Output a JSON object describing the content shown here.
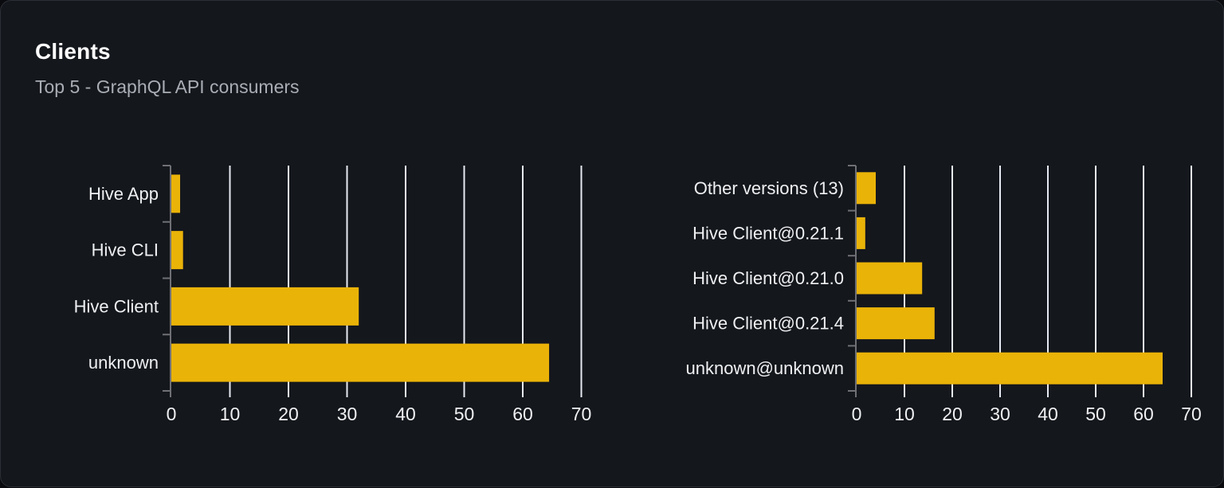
{
  "card": {
    "title": "Clients",
    "subtitle": "Top 5 - GraphQL API consumers"
  },
  "colors": {
    "bar": "#EAB308",
    "card_background": "#14171C",
    "card_border": "#2B2F36",
    "page_background": "#0A0B0E",
    "axis": "#6F7076",
    "grid": "#E7EAF2",
    "label": "#EFF0F2",
    "title": "#FFFFFF",
    "subtitle": "#A9ADB4"
  },
  "chart_data": [
    {
      "type": "bar",
      "orientation": "horizontal",
      "name": "top-clients",
      "categories_top_to_bottom": [
        "Hive App",
        "Hive CLI",
        "Hive Client",
        "unknown"
      ],
      "values": [
        1.5,
        2,
        32,
        64.5
      ],
      "xlim": [
        0,
        70
      ],
      "xticks": [
        0,
        10,
        20,
        30,
        40,
        50,
        60,
        70
      ],
      "grid": "vertical-white-lines",
      "legend": "none",
      "value_unit": "percent-of-operations"
    },
    {
      "type": "bar",
      "orientation": "horizontal",
      "name": "top-client-versions",
      "categories_top_to_bottom": [
        "Other versions (13)",
        "Hive Client@0.21.1",
        "Hive Client@0.21.0",
        "Hive Client@0.21.4",
        "unknown@unknown"
      ],
      "values": [
        4,
        1.8,
        13.7,
        16.3,
        64
      ],
      "xlim": [
        0,
        70
      ],
      "xticks": [
        0,
        10,
        20,
        30,
        40,
        50,
        60,
        70
      ],
      "grid": "vertical-white-lines",
      "legend": "none",
      "value_unit": "percent-of-operations"
    }
  ]
}
